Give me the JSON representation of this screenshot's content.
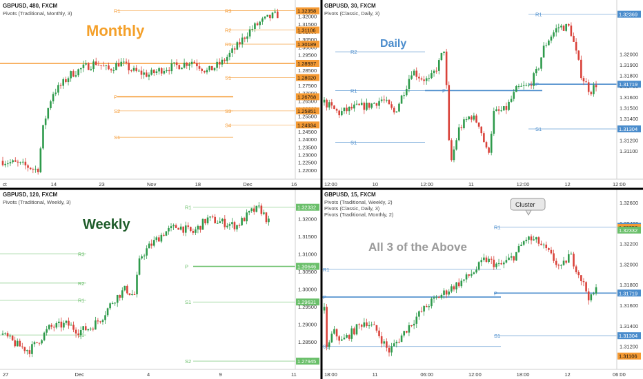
{
  "panels": [
    {
      "id": "monthly",
      "header": "GBPUSD, 480, FXCM",
      "subheaders": [
        "Pivots (Traditional, Monthly, 3)"
      ],
      "big_label": "Monthly",
      "big_color": "#f4a02a",
      "pivot_color": "#f59a33",
      "ylim": [
        1.215,
        1.327
      ],
      "ticks": [
        "1.32000",
        "1.31500",
        "1.31000",
        "1.30500",
        "1.30000",
        "1.29500",
        "1.29000",
        "1.28500",
        "1.28000",
        "1.27500",
        "1.27000",
        "1.26500",
        "1.26000",
        "1.25500",
        "1.25000",
        "1.24500",
        "1.24000",
        "1.23500",
        "1.23000",
        "1.22500",
        "1.22000"
      ],
      "price_tags": [
        {
          "label": "1.32358",
          "value": 1.32358
        },
        {
          "label": "1.31106",
          "value": 1.31106
        },
        {
          "label": "1.30189",
          "value": 1.30189
        },
        {
          "label": "1.28937",
          "value": 1.28937
        },
        {
          "label": "1.28020",
          "value": 1.2802
        },
        {
          "label": "1.26768",
          "value": 1.26768
        },
        {
          "label": "1.25851",
          "value": 1.25851
        },
        {
          "label": "1.24934",
          "value": 1.24934
        }
      ],
      "levels": [
        {
          "label": "R1",
          "value": 1.32358
        },
        {
          "label": "R3",
          "value": 1.32358
        },
        {
          "label": "R2",
          "value": 1.31106
        },
        {
          "label": "R1",
          "value": 1.30189
        },
        {
          "label": "P",
          "value": 1.28937
        },
        {
          "label": "S1",
          "value": 1.2802
        },
        {
          "label": "P",
          "value": 1.26768
        },
        {
          "label": "S2",
          "value": 1.25851
        },
        {
          "label": "S3",
          "value": 1.25851
        },
        {
          "label": "S4",
          "value": 1.24934
        },
        {
          "label": "S1",
          "value": 1.24134
        }
      ],
      "xticks": [
        "ct",
        "14",
        "23",
        "Nov",
        "18",
        "Dec",
        "16"
      ]
    },
    {
      "id": "daily",
      "header": "GBPUSD, 30, FXCM",
      "subheaders": [
        "Pivots (Classic, Daily, 3)"
      ],
      "big_label": "Daily",
      "big_color": "#4a8ccc",
      "pivot_color": "#4a8ccc",
      "ylim": [
        1.3085,
        1.3245
      ],
      "ticks": [
        "1.32000",
        "1.31900",
        "1.31800",
        "1.31700",
        "1.31600",
        "1.31500",
        "1.31400",
        "1.31300",
        "1.31200",
        "1.31100"
      ],
      "price_tags": [
        {
          "label": "1.32369",
          "value": 1.32369
        },
        {
          "label": "1.31719",
          "value": 1.31719
        },
        {
          "label": "1.31304",
          "value": 1.31304
        }
      ],
      "levels": [
        {
          "label": "R1",
          "value": 1.32369
        },
        {
          "label": "R2",
          "value": 1.3202
        },
        {
          "label": "R1",
          "value": 1.3166
        },
        {
          "label": "P",
          "value": 1.3166
        },
        {
          "label": "P",
          "value": 1.31719
        },
        {
          "label": "S1",
          "value": 1.31304
        },
        {
          "label": "S1",
          "value": 1.3118
        }
      ],
      "xticks": [
        "12:00",
        "10",
        "12:00",
        "11",
        "12:00",
        "12",
        "12:00"
      ]
    },
    {
      "id": "weekly",
      "header": "GBPUSD, 120, FXCM",
      "subheaders": [
        "Pivots (Traditional, Weekly, 3)"
      ],
      "big_label": "Weekly",
      "big_color": "#1e5c2a",
      "pivot_color": "#6abf6a",
      "ylim": [
        1.2775,
        1.327
      ],
      "ticks": [
        "1.32000",
        "1.31500",
        "1.31000",
        "1.30500",
        "1.30000",
        "1.29500",
        "1.29000",
        "1.28500",
        "1.28000"
      ],
      "price_tags": [
        {
          "label": "1.32332",
          "value": 1.32332
        },
        {
          "label": "1.30646",
          "value": 1.30646
        },
        {
          "label": "1.29631",
          "value": 1.29631
        },
        {
          "label": "1.27945",
          "value": 1.27945
        }
      ],
      "levels": [
        {
          "label": "R1",
          "value": 1.32332
        },
        {
          "label": "R3",
          "value": 1.31
        },
        {
          "label": "P",
          "value": 1.30646
        },
        {
          "label": "R2",
          "value": 1.3017
        },
        {
          "label": "R1",
          "value": 1.2968
        },
        {
          "label": "S1",
          "value": 1.29631
        },
        {
          "label": "S1",
          "value": 1.2869
        },
        {
          "label": "S2",
          "value": 1.27945
        }
      ],
      "xticks": [
        "27",
        "Dec",
        "4",
        "9",
        "11"
      ]
    },
    {
      "id": "all",
      "header": "GBPUSD, 15, FXCM",
      "subheaders": [
        "Pivots (Traditional, Weekly, 2)",
        "Pivots (Classic, Daily, 3)",
        "Pivots (Traditional, Monthly, 2)"
      ],
      "big_label": "All 3 of the Above",
      "big_color": "#9a9a9a",
      "pivot_color": "#4a8ccc",
      "callout": "Cluster",
      "ylim": [
        1.3099,
        1.3268
      ],
      "ticks": [
        "1.32600",
        "1.32400",
        "1.32200",
        "1.32000",
        "1.31800",
        "1.31600",
        "1.31400",
        "1.31200"
      ],
      "price_tags": [
        {
          "label": "1.32369",
          "value": 1.32369,
          "color": "#4a8ccc"
        },
        {
          "label": "1.32358",
          "value": 1.32358,
          "color": "#f59a33"
        },
        {
          "label": "1.32332",
          "value": 1.32332,
          "color": "#6abf6a"
        },
        {
          "label": "1.31719",
          "value": 1.31719,
          "color": "#4a8ccc"
        },
        {
          "label": "1.31304",
          "value": 1.31304,
          "color": "#4a8ccc"
        },
        {
          "label": "1.31106",
          "value": 1.31106,
          "color": "#f59a33"
        }
      ],
      "levels": [
        {
          "label": "R1",
          "value": 1.3236
        },
        {
          "label": "R1",
          "value": 1.3195
        },
        {
          "label": "P",
          "value": 1.31719
        },
        {
          "label": "P",
          "value": 1.3168
        },
        {
          "label": "S1",
          "value": 1.31304
        },
        {
          "label": "S1",
          "value": 1.312
        }
      ],
      "xticks": [
        "18:00",
        "11",
        "06:00",
        "12:00",
        "18:00",
        "12",
        "06:00"
      ]
    }
  ]
}
